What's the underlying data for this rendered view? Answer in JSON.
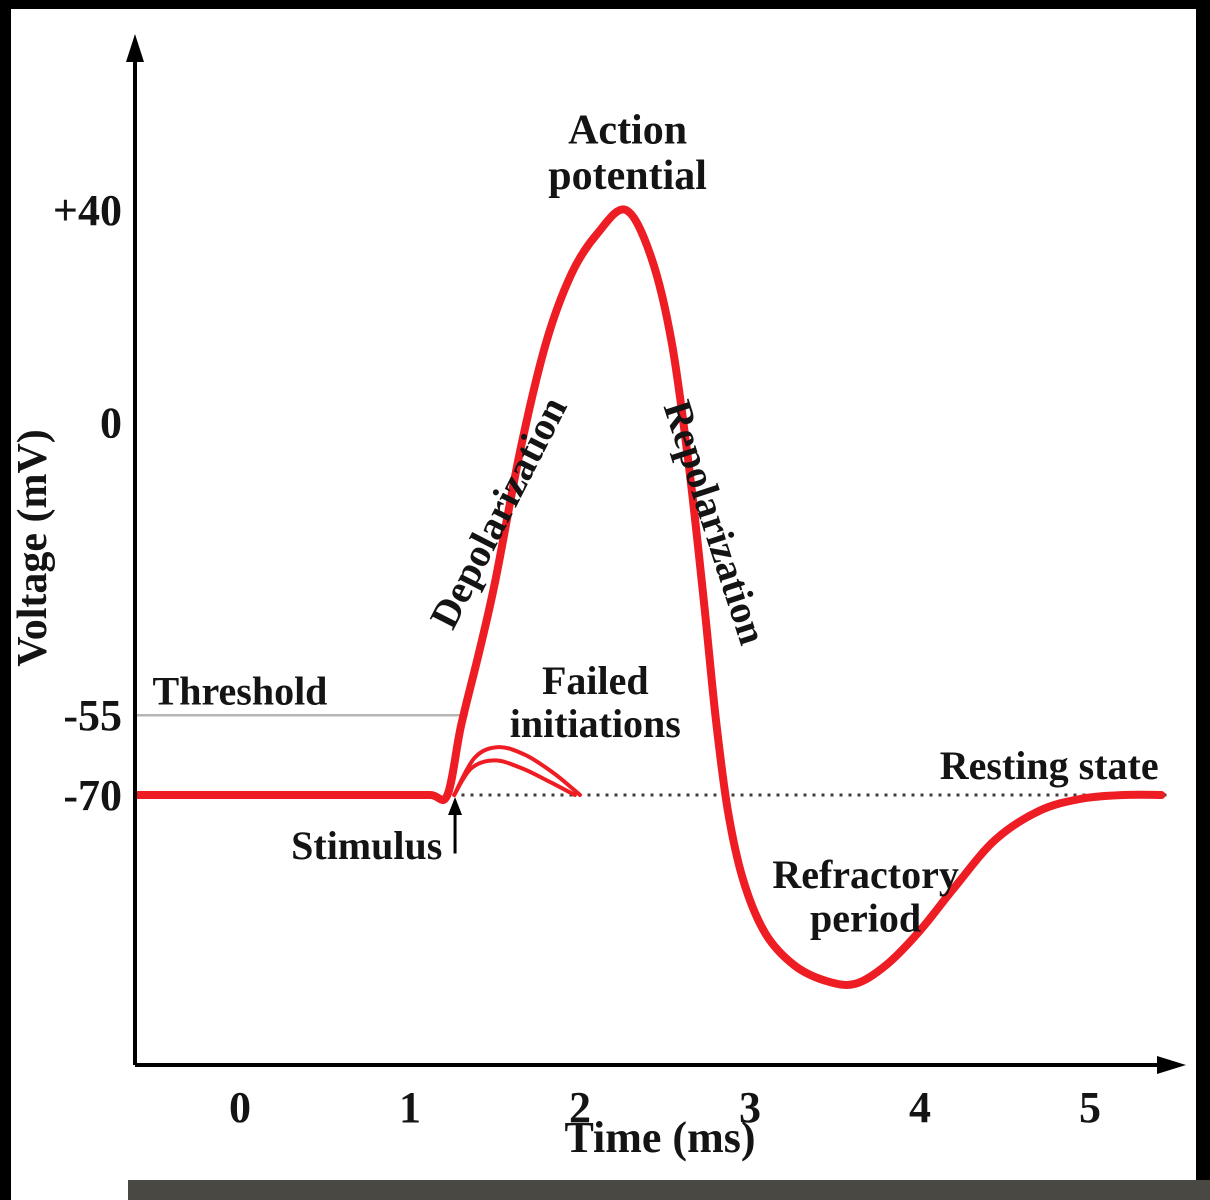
{
  "frame": {
    "background": "#ffffff",
    "edge_color": "#000000",
    "bottom_bar_color": "#4a4842"
  },
  "chart_data": {
    "type": "line",
    "title": "",
    "xlabel": "Time (ms)",
    "ylabel": "Voltage (mV)",
    "xlim": [
      -0.62,
      5.55
    ],
    "ylim": [
      -112,
      62
    ],
    "grid": false,
    "axis_color": "#000000",
    "x_ticks": [
      {
        "label": "0",
        "value": 0
      },
      {
        "label": "1",
        "value": 1
      },
      {
        "label": "2",
        "value": 2
      },
      {
        "label": "3",
        "value": 3
      },
      {
        "label": "4",
        "value": 4
      },
      {
        "label": "5",
        "value": 5
      }
    ],
    "y_ticks": [
      {
        "label": "+40",
        "value": 40
      },
      {
        "label": "0",
        "value": 0
      },
      {
        "label": "-55",
        "value": -55
      },
      {
        "label": "-70",
        "value": -70
      }
    ],
    "key_levels": {
      "resting_potential_mV": -70,
      "threshold_mV": -55,
      "peak_mV": 40
    },
    "series": [
      {
        "name": "membrane-potential",
        "color": "#ee1c23",
        "stroke_width": 8,
        "points": [
          [
            -0.6,
            -70
          ],
          [
            -0.1,
            -70
          ],
          [
            0.4,
            -70
          ],
          [
            0.9,
            -70
          ],
          [
            1.12,
            -70
          ],
          [
            1.22,
            -70
          ],
          [
            1.3,
            -57
          ],
          [
            1.4,
            -44
          ],
          [
            1.5,
            -30
          ],
          [
            1.65,
            -5
          ],
          [
            1.8,
            15
          ],
          [
            1.95,
            28
          ],
          [
            2.1,
            35.5
          ],
          [
            2.27,
            40
          ],
          [
            2.42,
            31
          ],
          [
            2.54,
            15
          ],
          [
            2.64,
            -8
          ],
          [
            2.73,
            -34
          ],
          [
            2.8,
            -56
          ],
          [
            2.87,
            -73
          ],
          [
            2.96,
            -86
          ],
          [
            3.09,
            -96
          ],
          [
            3.26,
            -102
          ],
          [
            3.45,
            -105
          ],
          [
            3.62,
            -105.5
          ],
          [
            3.8,
            -102
          ],
          [
            4.0,
            -95.5
          ],
          [
            4.2,
            -87.5
          ],
          [
            4.44,
            -78.5
          ],
          [
            4.7,
            -73
          ],
          [
            4.95,
            -70.7
          ],
          [
            5.2,
            -70
          ],
          [
            5.42,
            -70
          ]
        ]
      },
      {
        "name": "failed-initiation-1",
        "color": "#ee1c23",
        "stroke_width": 4,
        "points": [
          [
            1.26,
            -70
          ],
          [
            1.38,
            -63
          ],
          [
            1.52,
            -61
          ],
          [
            1.68,
            -62.5
          ],
          [
            1.85,
            -66
          ],
          [
            2.0,
            -70
          ]
        ]
      },
      {
        "name": "failed-initiation-2",
        "color": "#ee1c23",
        "stroke_width": 4,
        "points": [
          [
            1.26,
            -70
          ],
          [
            1.36,
            -65
          ],
          [
            1.5,
            -63.5
          ],
          [
            1.66,
            -65
          ],
          [
            1.82,
            -67.5
          ],
          [
            1.97,
            -70
          ]
        ]
      }
    ],
    "reference_lines": [
      {
        "name": "threshold-line",
        "value": -55,
        "x_range": [
          -0.62,
          1.34
        ],
        "style": "solid",
        "color": "#b5b5b5",
        "width": 2.5
      },
      {
        "name": "resting-line",
        "value": -70,
        "x_range": [
          1.25,
          5.45
        ],
        "style": "dotted",
        "color": "#3d3d3d",
        "width": 3
      }
    ],
    "annotations": [
      {
        "name": "action-potential",
        "lines": [
          "Action",
          "potential"
        ],
        "x": 2.28,
        "y": 52.5,
        "anchor": "middle",
        "size": 42,
        "rotate": 0
      },
      {
        "name": "depolarization",
        "lines": [
          "Depolarization"
        ],
        "x": 1.59,
        "y": -18,
        "anchor": "middle",
        "size": 40,
        "rotate": -63
      },
      {
        "name": "repolarization",
        "lines": [
          "Repolarization"
        ],
        "x": 2.72,
        "y": -19.5,
        "anchor": "middle",
        "size": 40,
        "rotate": 72
      },
      {
        "name": "failed-initiations",
        "lines": [
          "Failed",
          "initiations"
        ],
        "x": 2.09,
        "y": -51,
        "anchor": "middle",
        "size": 40,
        "rotate": 0
      },
      {
        "name": "threshold",
        "lines": [
          "Threshold"
        ],
        "x": 0.0,
        "y": -53,
        "anchor": "middle",
        "size": 40,
        "rotate": 0
      },
      {
        "name": "stimulus",
        "lines": [
          "Stimulus"
        ],
        "x": 1.19,
        "y": -82,
        "anchor": "end",
        "size": 40,
        "rotate": 0
      },
      {
        "name": "resting-state",
        "lines": [
          "Resting state"
        ],
        "x": 4.76,
        "y": -67,
        "anchor": "middle",
        "size": 40,
        "rotate": 0
      },
      {
        "name": "refractory-period",
        "lines": [
          "Refractory",
          "period"
        ],
        "x": 3.68,
        "y": -87.5,
        "anchor": "middle",
        "size": 40,
        "rotate": 0
      }
    ],
    "arrows": [
      {
        "name": "stimulus-arrow",
        "x": 1.265,
        "from_mV": -81,
        "to_mV": -73,
        "color": "#000000"
      }
    ]
  }
}
